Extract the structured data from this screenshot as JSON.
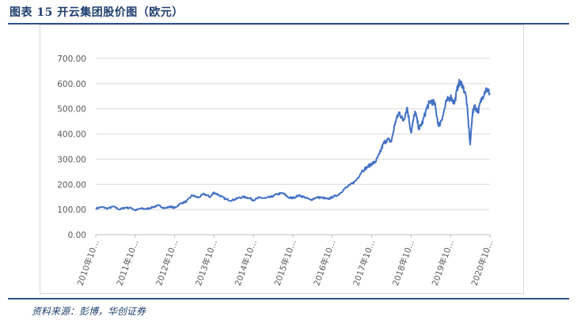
{
  "header": {
    "title": "图表 15   开云集团股价图（欧元）"
  },
  "footer": {
    "source": "资料来源：彭博，华创证券"
  },
  "chart_data": {
    "type": "line",
    "title": "",
    "xlabel": "",
    "ylabel": "",
    "ylim": [
      0,
      700
    ],
    "yticks": [
      0,
      100,
      200,
      300,
      400,
      500,
      600,
      700
    ],
    "ytick_labels": [
      "0.00",
      "100.00",
      "200.00",
      "300.00",
      "400.00",
      "500.00",
      "600.00",
      "700.00"
    ],
    "xlim": [
      2010.0,
      2020.0
    ],
    "xticks": [
      2010,
      2011,
      2012,
      2013,
      2014,
      2015,
      2016,
      2017,
      2018,
      2019,
      2020
    ],
    "xtick_labels": [
      "2010年10…",
      "2011年10…",
      "2012年10…",
      "2013年10…",
      "2014年10…",
      "2015年10…",
      "2016年10…",
      "2017年10…",
      "2018年10…",
      "2019年10…",
      "2020年10…"
    ],
    "grid": true,
    "legend": "none",
    "colors": {
      "line": "#4472c4",
      "grid": "#d9d9d9",
      "axis": "#bfbfbf"
    },
    "series": [
      {
        "x": [
          2010.0,
          2010.15,
          2010.3,
          2010.45,
          2010.6,
          2010.75,
          2010.9,
          2011.0,
          2011.15,
          2011.3,
          2011.45,
          2011.6,
          2011.75,
          2011.9,
          2012.0,
          2012.15,
          2012.3,
          2012.45,
          2012.6,
          2012.75,
          2012.9,
          2013.0,
          2013.15,
          2013.3,
          2013.45,
          2013.6,
          2013.75,
          2013.9,
          2014.0,
          2014.15,
          2014.3,
          2014.45,
          2014.6,
          2014.75,
          2014.9,
          2015.0,
          2015.15,
          2015.3,
          2015.45,
          2015.6,
          2015.75,
          2015.9,
          2016.0,
          2016.15,
          2016.3,
          2016.45,
          2016.6,
          2016.75,
          2016.9,
          2017.0,
          2017.1,
          2017.2,
          2017.3,
          2017.4,
          2017.5,
          2017.6,
          2017.7,
          2017.8,
          2017.9,
          2018.0,
          2018.1,
          2018.2,
          2018.3,
          2018.4,
          2018.5,
          2018.6,
          2018.7,
          2018.8,
          2018.9,
          2019.0,
          2019.1,
          2019.2,
          2019.3,
          2019.4,
          2019.5,
          2019.55,
          2019.6,
          2019.7,
          2019.8,
          2019.9,
          2020.0
        ],
        "y": [
          104,
          110,
          104,
          112,
          100,
          108,
          106,
          97,
          104,
          102,
          110,
          116,
          105,
          112,
          106,
          124,
          132,
          157,
          147,
          162,
          150,
          168,
          155,
          141,
          136,
          145,
          150,
          146,
          137,
          147,
          145,
          150,
          161,
          165,
          147,
          146,
          156,
          149,
          138,
          148,
          147,
          141,
          150,
          158,
          181,
          197,
          215,
          252,
          270,
          282,
          290,
          322,
          362,
          378,
          370,
          448,
          487,
          452,
          505,
          405,
          490,
          420,
          450,
          505,
          532,
          520,
          430,
          470,
          530,
          548,
          522,
          602,
          598,
          545,
          358,
          470,
          512,
          490,
          545,
          580,
          562
        ]
      }
    ]
  }
}
